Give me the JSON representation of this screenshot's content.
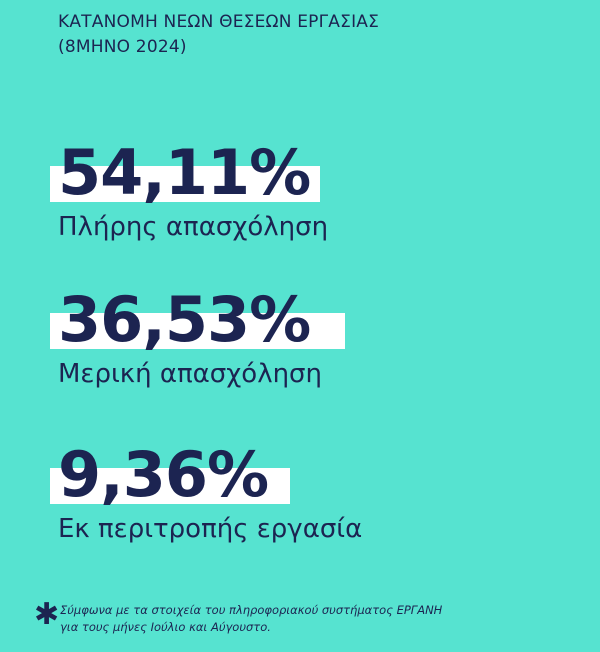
{
  "header": {
    "line1": "ΚΑΤΑΝΟΜΗ ΝΕΩΝ ΘΕΣΕΩΝ ΕΡΓΑΣΙΑΣ",
    "line2": "(8ΜΗΝΟ 2024)"
  },
  "chart_data": {
    "type": "table",
    "title": "ΚΑΤΑΝΟΜΗ ΝΕΩΝ ΘΕΣΕΩΝ ΕΡΓΑΣΙΑΣ (8ΜΗΝΟ 2024)",
    "categories": [
      "Πλήρης απασχόληση",
      "Μερική απασχόληση",
      "Εκ περιτροπής εργασία"
    ],
    "values": [
      54.11,
      36.53,
      9.36
    ],
    "value_labels": [
      "54,11%",
      "36,53%",
      "9,36%"
    ],
    "unit": "%"
  },
  "footnote": {
    "symbol": "✱",
    "line1": "Σύμφωνα με τα στοιχεία του πληροφοριακού συστήματος ΕΡΓΑΝΗ",
    "line2": "για τους μήνες Ιούλιο και Αύγουστο."
  },
  "colors": {
    "background": "#56e3d0",
    "text": "#1c2451",
    "highlight": "#ffffff"
  }
}
